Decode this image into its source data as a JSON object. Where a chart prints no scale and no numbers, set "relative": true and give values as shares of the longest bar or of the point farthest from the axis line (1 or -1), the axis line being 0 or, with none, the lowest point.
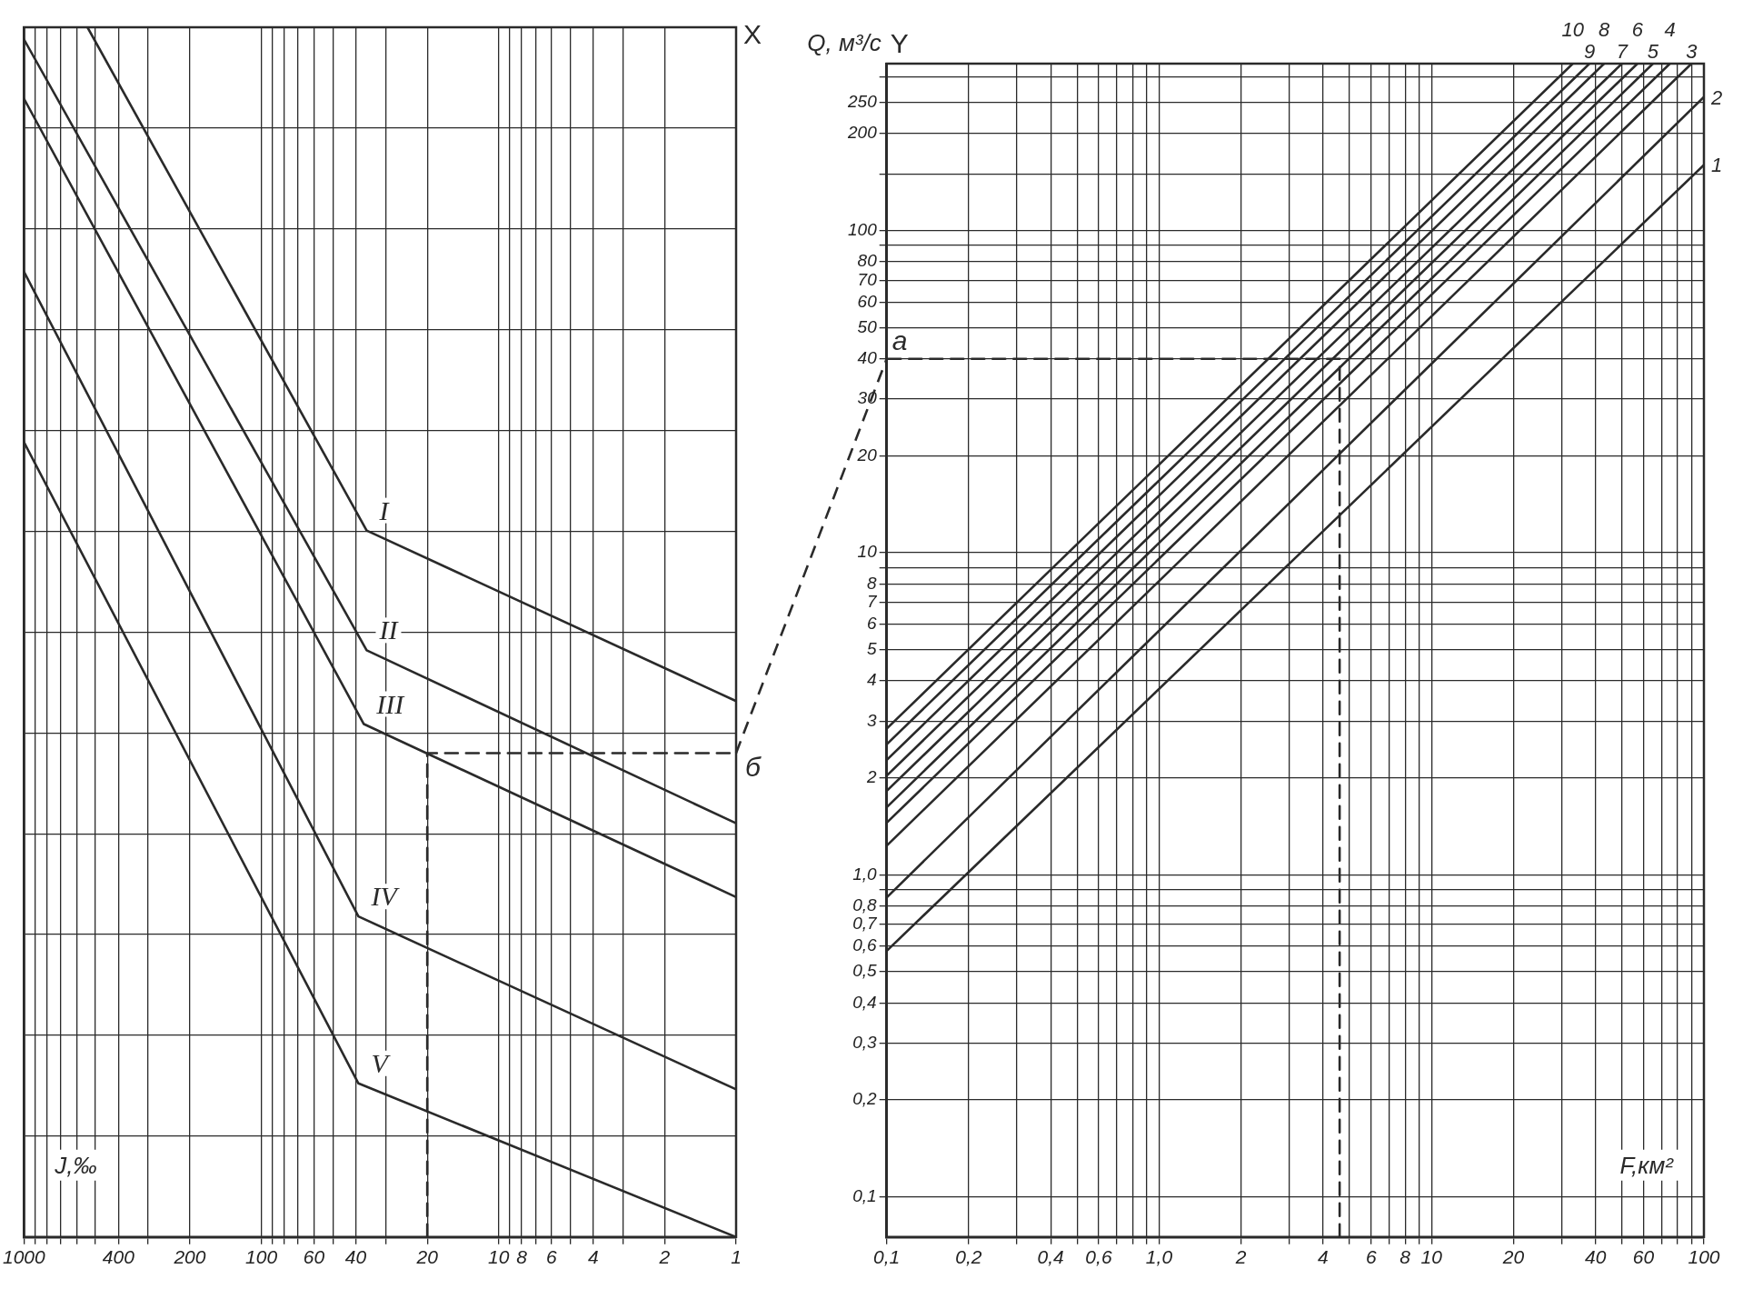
{
  "chart_data": [
    {
      "type": "line",
      "relative": true,
      "log": "x",
      "xlabel": "J,‰",
      "xlim": [
        1000,
        1
      ],
      "xticks": [
        1000,
        {
          "value": 900,
          "label": null
        },
        {
          "value": 800,
          "label": null
        },
        {
          "value": 700,
          "label": null
        },
        {
          "value": 600,
          "label": null
        },
        {
          "value": 500,
          "label": null
        },
        400,
        {
          "value": 300,
          "label": null
        },
        200,
        100,
        {
          "value": 90,
          "label": null
        },
        {
          "value": 80,
          "label": null
        },
        {
          "value": 70,
          "label": null
        },
        60,
        {
          "value": 50,
          "label": null
        },
        40,
        {
          "value": 30,
          "label": null
        },
        20,
        10,
        {
          "value": 9,
          "label": null
        },
        8,
        {
          "value": 7,
          "label": null
        },
        6,
        {
          "value": 5,
          "label": null
        },
        4,
        {
          "value": 3,
          "label": null
        },
        2,
        1
      ],
      "grid": true,
      "legend": false,
      "annotations": [
        "X",
        {
          "text": "б",
          "x": 1,
          "y": 0.4
        }
      ],
      "series": [
        {
          "name": "I",
          "color": "#2a2a2a",
          "x": [
            540,
            36,
            1
          ],
          "values": [
            1,
            0.584,
            0.443
          ]
        },
        {
          "name": "II",
          "color": "#2a2a2a",
          "x": [
            1000,
            36,
            1
          ],
          "values": [
            0.99,
            0.485,
            0.342
          ]
        },
        {
          "name": "III",
          "color": "#2a2a2a",
          "x": [
            1000,
            37,
            1
          ],
          "values": [
            0.941,
            0.424,
            0.281
          ]
        },
        {
          "name": "IV",
          "color": "#2a2a2a",
          "x": [
            1000,
            39,
            1
          ],
          "values": [
            0.798,
            0.265,
            0.122
          ]
        },
        {
          "name": "V",
          "color": "#2a2a2a",
          "x": [
            1000,
            39,
            1
          ],
          "values": [
            0.657,
            0.127,
            0
          ]
        },
        {
          "type": "line",
          "line_style": "dashed",
          "color": "#2a2a2a",
          "x": [
            20,
            20,
            1
          ],
          "values": [
            0,
            0.4,
            0.4
          ]
        }
      ]
    },
    {
      "type": "line",
      "log": "xy",
      "xlabel": "F,км²",
      "ylabel": "Q, м³/с",
      "xlim": [
        0.1,
        100
      ],
      "ylim": [
        0.075,
        330
      ],
      "xticks": [
        {
          "value": 0.1,
          "label": "0,1"
        },
        {
          "value": 0.2,
          "label": "0,2"
        },
        {
          "value": 0.3,
          "label": null
        },
        {
          "value": 0.4,
          "label": "0,4"
        },
        {
          "value": 0.5,
          "label": null
        },
        {
          "value": 0.6,
          "label": "0,6"
        },
        {
          "value": 0.7,
          "label": null
        },
        {
          "value": 0.8,
          "label": null
        },
        {
          "value": 0.9,
          "label": null
        },
        {
          "value": 1,
          "label": "1,0"
        },
        2,
        {
          "value": 3,
          "label": null
        },
        4,
        {
          "value": 5,
          "label": null
        },
        6,
        {
          "value": 7,
          "label": null
        },
        8,
        {
          "value": 9,
          "label": null
        },
        10,
        20,
        {
          "value": 30,
          "label": null
        },
        40,
        {
          "value": 50,
          "label": null
        },
        60,
        {
          "value": 70,
          "label": null
        },
        {
          "value": 80,
          "label": null
        },
        {
          "value": 90,
          "label": null
        },
        100
      ],
      "yticks": [
        {
          "value": 0.1,
          "label": "0,1"
        },
        {
          "value": 0.2,
          "label": "0,2"
        },
        {
          "value": 0.3,
          "label": "0,3"
        },
        {
          "value": 0.4,
          "label": "0,4"
        },
        {
          "value": 0.5,
          "label": "0,5"
        },
        {
          "value": 0.6,
          "label": "0,6"
        },
        {
          "value": 0.7,
          "label": "0,7"
        },
        {
          "value": 0.8,
          "label": "0,8"
        },
        {
          "value": 0.9,
          "label": null
        },
        {
          "value": 1,
          "label": "1,0"
        },
        2,
        3,
        4,
        5,
        6,
        7,
        8,
        {
          "value": 9,
          "label": null
        },
        10,
        20,
        30,
        40,
        50,
        60,
        70,
        80,
        {
          "value": 90,
          "label": null
        },
        100,
        {
          "value": 150,
          "label": null
        },
        200,
        250,
        {
          "value": 300,
          "label": null
        }
      ],
      "grid": true,
      "legend": false,
      "annotations": [
        "Y",
        {
          "text": "а",
          "x": 0.1,
          "y": 40
        }
      ],
      "series": [
        {
          "name": "1",
          "color": "#2a2a2a",
          "x": [
            0.1,
            100
          ],
          "values": [
            0.58,
            160
          ]
        },
        {
          "name": "2",
          "color": "#2a2a2a",
          "x": [
            0.1,
            100
          ],
          "values": [
            0.85,
            260
          ]
        },
        {
          "name": "3",
          "color": "#2a2a2a",
          "x": [
            0.1,
            90
          ],
          "values": [
            1.23,
            330
          ]
        },
        {
          "name": "4",
          "color": "#2a2a2a",
          "x": [
            0.1,
            75
          ],
          "values": [
            1.45,
            330
          ]
        },
        {
          "name": "5",
          "color": "#2a2a2a",
          "x": [
            0.1,
            65
          ],
          "values": [
            1.62,
            330
          ]
        },
        {
          "name": "6",
          "color": "#2a2a2a",
          "x": [
            0.1,
            57
          ],
          "values": [
            1.82,
            330
          ]
        },
        {
          "name": "7",
          "color": "#2a2a2a",
          "x": [
            0.1,
            50
          ],
          "values": [
            2.03,
            330
          ]
        },
        {
          "name": "8",
          "color": "#2a2a2a",
          "x": [
            0.1,
            43
          ],
          "values": [
            2.27,
            330
          ]
        },
        {
          "name": "9",
          "color": "#2a2a2a",
          "x": [
            0.1,
            38
          ],
          "values": [
            2.54,
            330
          ]
        },
        {
          "name": "10",
          "color": "#2a2a2a",
          "x": [
            0.1,
            33
          ],
          "values": [
            2.84,
            330
          ]
        },
        {
          "type": "line",
          "line_style": "dashed",
          "color": "#2a2a2a",
          "x": [
            4.6,
            4.6,
            0.1
          ],
          "values": [
            0.075,
            40,
            40
          ]
        }
      ]
    }
  ]
}
